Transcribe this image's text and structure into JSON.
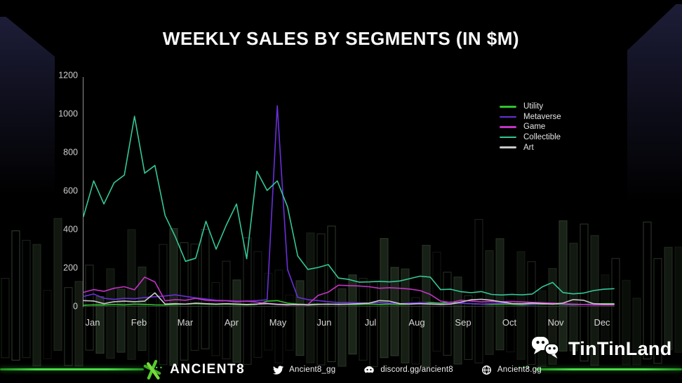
{
  "title": "WEEKLY SALES BY SEGMENTS (IN $M)",
  "chart_data": {
    "type": "line",
    "title": "WEEKLY SALES BY SEGMENTS (IN $M)",
    "x_unit": "week (52 weeks, Jan-Dec)",
    "months": [
      "Jan",
      "Feb",
      "Mar",
      "Apr",
      "May",
      "Jun",
      "Jul",
      "Aug",
      "Sep",
      "Oct",
      "Nov",
      "Dec"
    ],
    "yticks": [
      0,
      200,
      400,
      600,
      800,
      1000,
      1200
    ],
    "ylim": [
      0,
      1200
    ],
    "grid": false,
    "legend_position": "upper right",
    "series": [
      {
        "name": "Utility",
        "color": "#2fc32f",
        "values": [
          4,
          6,
          5,
          8,
          6,
          10,
          8,
          6,
          5,
          8,
          10,
          12,
          10,
          8,
          10,
          8,
          6,
          8,
          25,
          28,
          15,
          10,
          8,
          10,
          8,
          10,
          8,
          8,
          10,
          8,
          10,
          8,
          10,
          15,
          18,
          15,
          20,
          15,
          12,
          10,
          8,
          10,
          8,
          6,
          8,
          10,
          12,
          8,
          6,
          8,
          10,
          12,
          12
        ]
      },
      {
        "name": "Metaverse",
        "color": "#6a2fd9",
        "values": [
          50,
          62,
          40,
          34,
          40,
          38,
          44,
          48,
          52,
          58,
          50,
          42,
          36,
          30,
          28,
          26,
          25,
          28,
          32,
          1040,
          190,
          45,
          33,
          28,
          22,
          18,
          18,
          16,
          15,
          18,
          15,
          12,
          15,
          18,
          12,
          10,
          12,
          15,
          12,
          10,
          12,
          15,
          12,
          10,
          10,
          12,
          15,
          10,
          8,
          8,
          8,
          8,
          8
        ]
      },
      {
        "name": "Game",
        "color": "#c433c4",
        "values": [
          71,
          85,
          76,
          92,
          100,
          84,
          150,
          125,
          27,
          33,
          30,
          40,
          30,
          27,
          27,
          22,
          25,
          20,
          14,
          10,
          8,
          6,
          8,
          55,
          72,
          108,
          106,
          104,
          100,
          92,
          95,
          92,
          88,
          80,
          60,
          25,
          18,
          30,
          26,
          21,
          24,
          22,
          24,
          21,
          19,
          17,
          15,
          12,
          10,
          8,
          6,
          5,
          5
        ]
      },
      {
        "name": "Collectible",
        "color": "#34c796",
        "values": [
          465,
          650,
          530,
          640,
          680,
          985,
          690,
          730,
          470,
          360,
          232,
          248,
          440,
          295,
          420,
          530,
          245,
          700,
          600,
          650,
          515,
          260,
          190,
          200,
          215,
          145,
          138,
          124,
          125,
          128,
          125,
          130,
          142,
          155,
          150,
          85,
          87,
          74,
          69,
          75,
          60,
          57,
          60,
          58,
          62,
          100,
          122,
          70,
          63,
          67,
          80,
          87,
          90
        ]
      },
      {
        "name": "Art",
        "color": "#c9c9c9",
        "values": [
          28,
          26,
          12,
          22,
          25,
          22,
          25,
          68,
          10,
          12,
          10,
          15,
          12,
          10,
          12,
          10,
          8,
          10,
          12,
          8,
          6,
          8,
          5,
          8,
          10,
          8,
          10,
          12,
          15,
          28,
          25,
          12,
          10,
          12,
          10,
          8,
          10,
          20,
          32,
          35,
          30,
          21,
          13,
          12,
          15,
          12,
          10,
          15,
          33,
          30,
          12,
          10,
          10
        ]
      }
    ]
  },
  "footer": {
    "brand": "ANCIENT8",
    "twitter": "Ancient8_gg",
    "discord": "discord.gg/ancient8",
    "website": "Ancient8.gg",
    "dots": "...",
    "accent_color": "#46dc46"
  },
  "watermark": {
    "label": "TinTinLand"
  }
}
